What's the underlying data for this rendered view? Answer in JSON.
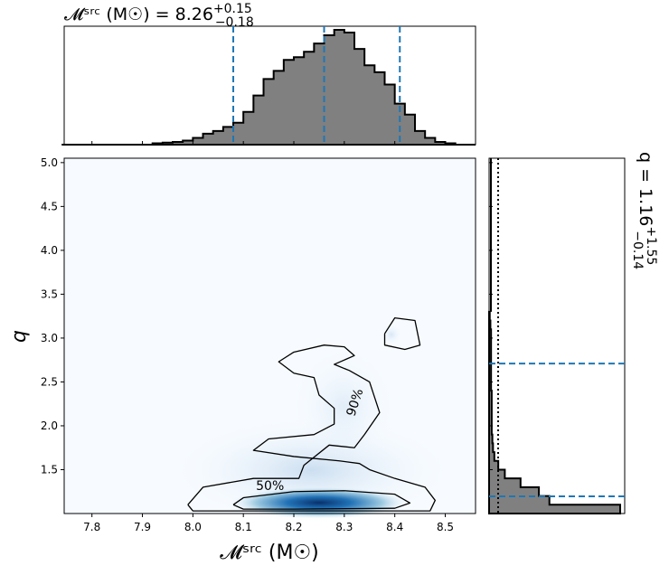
{
  "chart_data": [
    {
      "type": "histogram",
      "panel": "top-marginal",
      "title": {
        "main": "𝓜ˢʳᶜ (M☉) = 8.26",
        "sup": "+0.15",
        "sub": "−0.18"
      },
      "x": [
        7.75,
        7.77,
        7.79,
        7.81,
        7.83,
        7.85,
        7.87,
        7.89,
        7.91,
        7.93,
        7.95,
        7.97,
        7.99,
        8.01,
        8.03,
        8.05,
        8.07,
        8.09,
        8.11,
        8.13,
        8.15,
        8.17,
        8.19,
        8.21,
        8.23,
        8.25,
        8.27,
        8.29,
        8.31,
        8.33,
        8.35,
        8.37,
        8.39,
        8.41,
        8.43,
        8.45,
        8.47,
        8.49,
        8.51,
        8.53,
        8.55
      ],
      "values": [
        0,
        0,
        0,
        0,
        0,
        0,
        0,
        0,
        0,
        0.01,
        0.015,
        0.02,
        0.03,
        0.05,
        0.08,
        0.1,
        0.13,
        0.16,
        0.24,
        0.36,
        0.48,
        0.54,
        0.62,
        0.64,
        0.68,
        0.74,
        0.8,
        0.84,
        0.82,
        0.7,
        0.58,
        0.53,
        0.44,
        0.3,
        0.22,
        0.1,
        0.05,
        0.02,
        0.01,
        0,
        0
      ],
      "quantiles": [
        8.08,
        8.26,
        8.41
      ],
      "xlim": [
        7.745,
        8.56
      ]
    },
    {
      "type": "heatmap",
      "panel": "joint",
      "xlabel": "𝓜ˢʳᶜ (M☉)",
      "ylabel": "q",
      "xlim": [
        7.745,
        8.56
      ],
      "ylim": [
        1.0,
        5.05
      ],
      "xticks": [
        "7.8",
        "7.9",
        "8.0",
        "8.1",
        "8.2",
        "8.3",
        "8.4",
        "8.5"
      ],
      "xtick_values": [
        7.8,
        7.9,
        8.0,
        8.1,
        8.2,
        8.3,
        8.4,
        8.5
      ],
      "yticks": [
        "1.5",
        "2.0",
        "2.5",
        "3.0",
        "3.5",
        "4.0",
        "4.5",
        "5.0"
      ],
      "ytick_values": [
        1.5,
        2.0,
        2.5,
        3.0,
        3.5,
        4.0,
        4.5,
        5.0
      ],
      "contours": [
        {
          "label": "50%",
          "points": [
            [
              8.08,
              1.1
            ],
            [
              8.1,
              1.18
            ],
            [
              8.2,
              1.25
            ],
            [
              8.3,
              1.26
            ],
            [
              8.4,
              1.22
            ],
            [
              8.43,
              1.12
            ],
            [
              8.4,
              1.06
            ],
            [
              8.2,
              1.05
            ],
            [
              8.1,
              1.05
            ],
            [
              8.08,
              1.1
            ]
          ]
        },
        {
          "label": "90%",
          "points": [
            [
              7.99,
              1.1
            ],
            [
              8.02,
              1.3
            ],
            [
              8.12,
              1.4
            ],
            [
              8.21,
              1.4
            ],
            [
              8.22,
              1.55
            ],
            [
              8.27,
              1.78
            ],
            [
              8.32,
              1.75
            ],
            [
              8.34,
              1.9
            ],
            [
              8.37,
              2.15
            ],
            [
              8.35,
              2.5
            ],
            [
              8.31,
              2.63
            ],
            [
              8.28,
              2.7
            ],
            [
              8.32,
              2.8
            ],
            [
              8.3,
              2.9
            ],
            [
              8.26,
              2.92
            ],
            [
              8.2,
              2.84
            ],
            [
              8.17,
              2.73
            ],
            [
              8.2,
              2.6
            ],
            [
              8.24,
              2.55
            ],
            [
              8.25,
              2.35
            ],
            [
              8.28,
              2.2
            ],
            [
              8.28,
              2.02
            ],
            [
              8.24,
              1.9
            ],
            [
              8.15,
              1.85
            ],
            [
              8.12,
              1.72
            ],
            [
              8.2,
              1.65
            ],
            [
              8.29,
              1.6
            ],
            [
              8.33,
              1.57
            ],
            [
              8.35,
              1.5
            ],
            [
              8.4,
              1.4
            ],
            [
              8.46,
              1.3
            ],
            [
              8.48,
              1.15
            ],
            [
              8.47,
              1.03
            ],
            [
              8.0,
              1.03
            ],
            [
              7.99,
              1.1
            ]
          ]
        },
        {
          "label": "",
          "points": [
            [
              8.38,
              3.05
            ],
            [
              8.4,
              3.23
            ],
            [
              8.44,
              3.2
            ],
            [
              8.45,
              2.92
            ],
            [
              8.42,
              2.87
            ],
            [
              8.38,
              2.92
            ],
            [
              8.38,
              3.05
            ]
          ]
        }
      ],
      "peak": {
        "x": 8.26,
        "q": 1.12
      }
    },
    {
      "type": "histogram",
      "panel": "right-marginal",
      "orientation": "horizontal",
      "title": {
        "main": "q = 1.16",
        "sup": "+1.55",
        "sub": "−0.14"
      },
      "bins_q": [
        1.0,
        1.1,
        1.2,
        1.3,
        1.4,
        1.5,
        1.6,
        1.7,
        1.8,
        1.9,
        2.0,
        2.1,
        2.2,
        2.3,
        2.4,
        2.5,
        2.6,
        2.7,
        2.8,
        2.9,
        3.0,
        3.1,
        3.2
      ],
      "values": [
        1.0,
        0.46,
        0.38,
        0.24,
        0.12,
        0.07,
        0.04,
        0.03,
        0.025,
        0.02,
        0.02,
        0.02,
        0.02,
        0.02,
        0.015,
        0.015,
        0.015,
        0.015,
        0.015,
        0.015,
        0.015,
        0.01,
        0.005
      ],
      "quantiles": [
        1.02,
        1.16,
        2.71
      ],
      "ylim": [
        1.0,
        5.05
      ]
    }
  ],
  "colors": {
    "quantile": "#1f77b4",
    "hist_fill": "#808080",
    "density_dark": "#08306b",
    "density_light": "#f7fbff"
  }
}
